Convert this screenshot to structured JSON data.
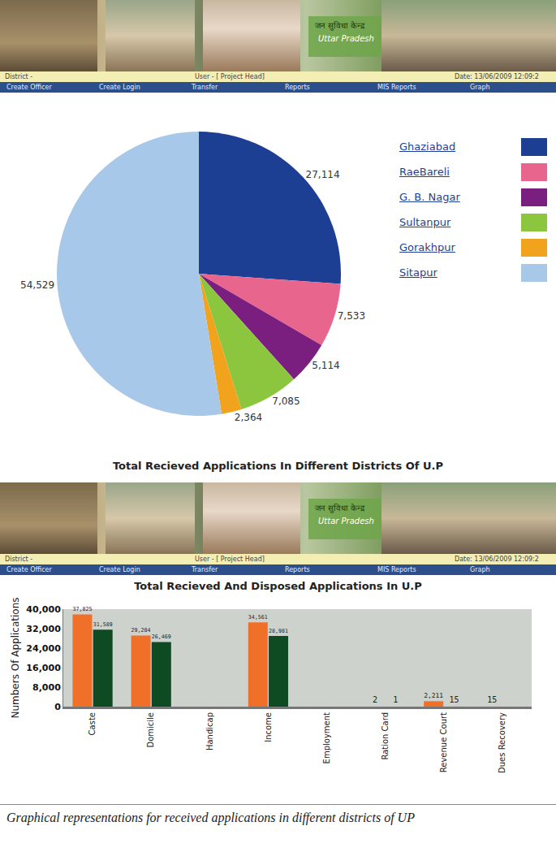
{
  "header": {
    "banner_texts": [
      "जन सुविधा केन्द्र",
      "Uttar Pradesh"
    ],
    "status_bar": [
      "District -",
      "User - [ Project Head]",
      "Date: 13/06/2009 12:09:2"
    ],
    "menu": [
      "Create Officer",
      "Create Login",
      "Transfer",
      "Reports",
      "MIS Reports",
      "Graph"
    ]
  },
  "chart_data": [
    {
      "type": "pie",
      "title": "Total Recieved Applications In Different Districts Of U.P",
      "categories": [
        "Ghaziabad",
        "RaeBareli",
        "G. B. Nagar",
        "Sultanpur",
        "Gorakhpur",
        "Sitapur"
      ],
      "values": [
        27114,
        7533,
        5114,
        7085,
        2364,
        54529
      ],
      "value_labels": [
        "27,114",
        "7,533",
        "5,114",
        "7,085",
        "2,364",
        "54,529"
      ],
      "colors": [
        "#1c3f94",
        "#e8658e",
        "#7a1f80",
        "#8cc63e",
        "#f2a31d",
        "#a8c8ea"
      ],
      "data_labels": true,
      "legend": "right"
    },
    {
      "type": "bar",
      "title": "Total Recieved And Disposed Applications In U.P",
      "y_label": "Numbers Of Applications",
      "categories": [
        "Caste",
        "Domicile",
        "Handicap",
        "Income",
        "Employment",
        "Ration Card",
        "Revenue Court",
        "Dues Recovery"
      ],
      "series": [
        {
          "color": "#f0702a",
          "values": [
            37825,
            29204,
            null,
            34561,
            null,
            2,
            2211,
            15
          ],
          "value_labels": [
            "37,825",
            "29,204",
            null,
            "34,561",
            null,
            "2",
            "2,211",
            "15"
          ]
        },
        {
          "color": "#0e4a22",
          "values": [
            31589,
            26469,
            null,
            28981,
            null,
            1,
            15,
            null
          ],
          "value_labels": [
            "31,589",
            "26,469",
            null,
            "28,981",
            null,
            "1",
            "15",
            null
          ]
        }
      ],
      "ylim": [
        0,
        40000
      ],
      "yticks": [
        0,
        {
          "value": 8000,
          "label": "8,000"
        },
        {
          "value": 16000,
          "label": "16,000"
        },
        {
          "value": 24000,
          "label": "24,000"
        },
        {
          "value": 32000,
          "label": "32,000"
        },
        {
          "value": 40000,
          "label": "40,000"
        }
      ],
      "grid": false,
      "data_labels": true
    }
  ],
  "caption": "Graphical representations for received applications in different districts of UP"
}
